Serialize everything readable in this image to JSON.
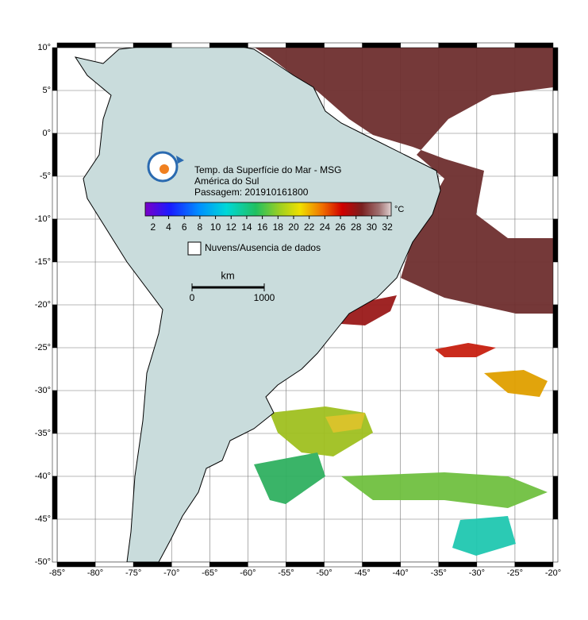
{
  "map": {
    "title": "Temp. da Superfície do Mar - MSG",
    "subtitle": "América do Sul",
    "pass": "Passagem: 201910161800",
    "colorbar": {
      "unit": "°C",
      "lim": [
        1,
        32.5
      ],
      "ticks": [
        2,
        4,
        6,
        8,
        10,
        12,
        14,
        16,
        18,
        20,
        22,
        24,
        26,
        28,
        30,
        32
      ]
    },
    "legend": "Nuvens/Ausencia de dados",
    "scale": {
      "unit": "km",
      "labels": [
        0,
        1000
      ]
    },
    "lon": {
      "lim": [
        -85,
        -20
      ],
      "ticks": [
        {
          "value": -85,
          "label": "-85°"
        },
        {
          "value": -80,
          "label": "-80°"
        },
        {
          "value": -75,
          "label": "-75°"
        },
        {
          "value": -70,
          "label": "-70°"
        },
        {
          "value": -65,
          "label": "-65°"
        },
        {
          "value": -60,
          "label": "-60°"
        },
        {
          "value": -55,
          "label": "-55°"
        },
        {
          "value": -50,
          "label": "-50°"
        },
        {
          "value": -45,
          "label": "-45°"
        },
        {
          "value": -40,
          "label": "-40°"
        },
        {
          "value": -35,
          "label": "-35°"
        },
        {
          "value": -30,
          "label": "-30°"
        },
        {
          "value": -25,
          "label": "-25°"
        },
        {
          "value": -20,
          "label": "-20°"
        }
      ]
    },
    "lat": {
      "lim": [
        -50,
        10
      ],
      "ticks": [
        {
          "value": 10,
          "label": "10°"
        },
        {
          "value": 5,
          "label": "5°"
        },
        {
          "value": 0,
          "label": "0°"
        },
        {
          "value": -5,
          "label": "-5°"
        },
        {
          "value": -10,
          "label": "-10°"
        },
        {
          "value": -15,
          "label": "-15°"
        },
        {
          "value": -20,
          "label": "-20°"
        },
        {
          "value": -25,
          "label": "-25°"
        },
        {
          "value": -30,
          "label": "-30°"
        },
        {
          "value": -35,
          "label": "-35°"
        },
        {
          "value": -40,
          "label": "-40°"
        },
        {
          "value": -45,
          "label": "-45°"
        },
        {
          "value": -50,
          "label": "-50°"
        }
      ]
    }
  }
}
